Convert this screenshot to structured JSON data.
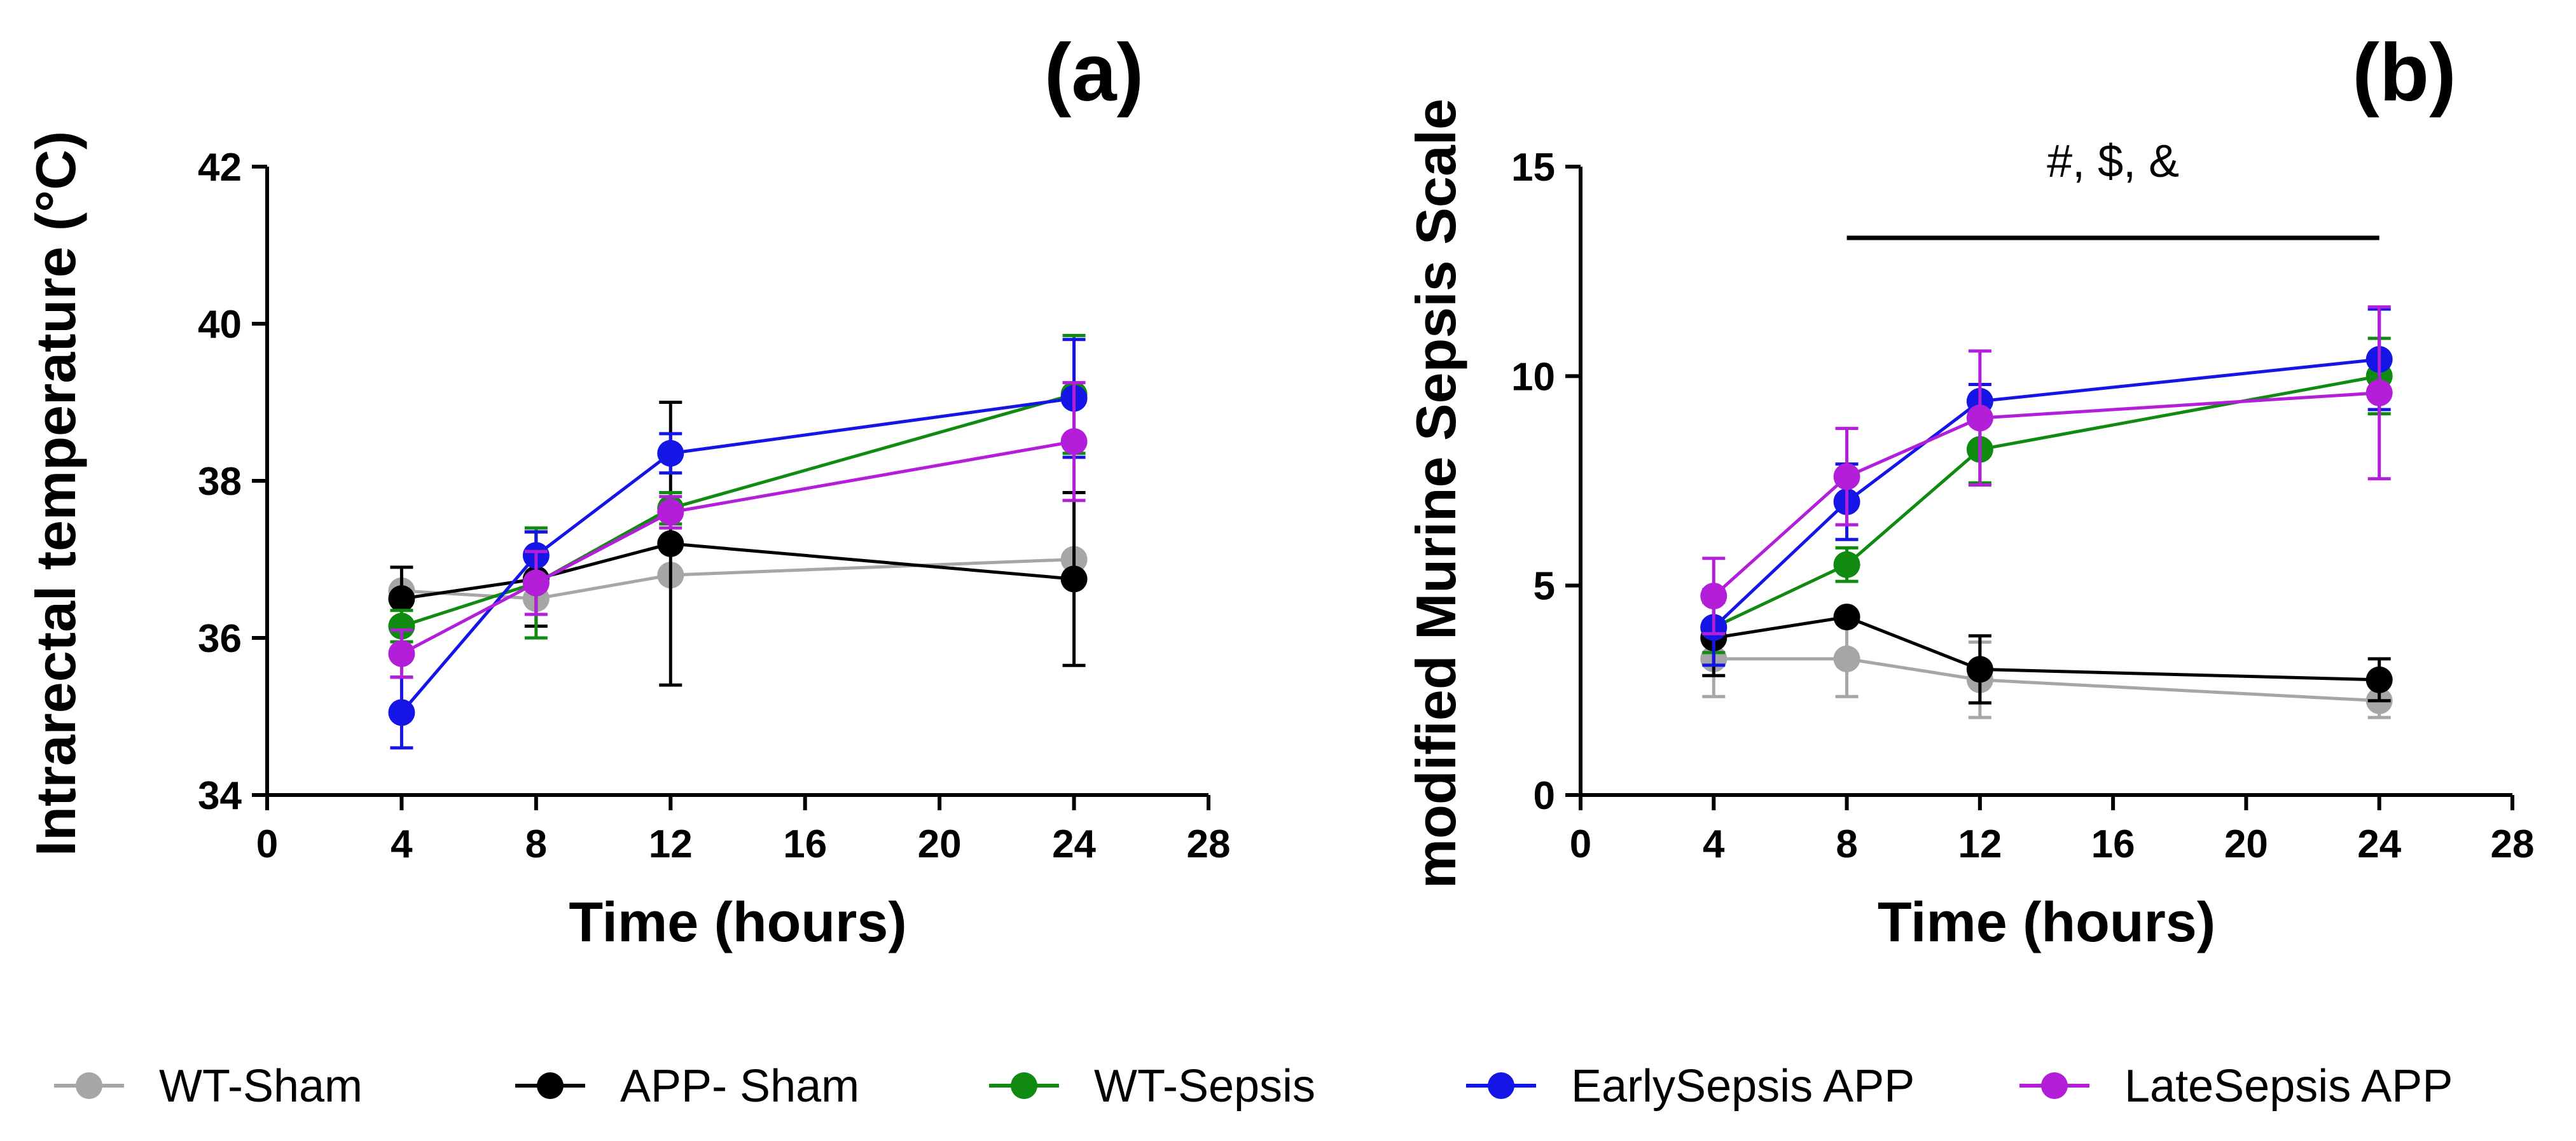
{
  "chart_data": [
    {
      "id": "a",
      "type": "line",
      "panel_label": "(a)",
      "title": "",
      "xlabel": "Time (hours)",
      "ylabel": "Intrarectal temperature (°C)",
      "xlim": [
        0,
        28
      ],
      "ylim": [
        34,
        42
      ],
      "xticks": [
        0,
        4,
        8,
        12,
        16,
        20,
        24,
        28
      ],
      "yticks": [
        34,
        36,
        38,
        40,
        42
      ],
      "x": [
        4,
        8,
        12,
        24
      ],
      "series": [
        {
          "name": "WT-Sham",
          "color": "#a6a6a6",
          "values": [
            36.6,
            36.5,
            36.8,
            37.0
          ],
          "errors": [
            0.0,
            0.0,
            0.0,
            0.0
          ]
        },
        {
          "name": "APP- Sham",
          "color": "#000000",
          "values": [
            36.5,
            36.75,
            37.2,
            36.75
          ],
          "errors": [
            0.4,
            0.6,
            1.8,
            1.1
          ]
        },
        {
          "name": "WT-Sepsis",
          "color": "#108a10",
          "values": [
            36.15,
            36.7,
            37.65,
            39.1
          ],
          "errors": [
            0.2,
            0.7,
            0.2,
            0.75
          ]
        },
        {
          "name": "EarlySepsis APP",
          "color": "#1515e6",
          "values": [
            35.05,
            37.05,
            38.35,
            39.05
          ],
          "errors": [
            0.45,
            0.3,
            0.25,
            0.75
          ]
        },
        {
          "name": "LateSepsis APP",
          "color": "#b31ed9",
          "values": [
            35.8,
            36.7,
            37.6,
            38.5
          ],
          "errors": [
            0.3,
            0.4,
            0.2,
            0.75
          ]
        }
      ]
    },
    {
      "id": "b",
      "type": "line",
      "panel_label": "(b)",
      "title": "",
      "xlabel": "Time (hours)",
      "ylabel": "modified Murine Sepsis Scale",
      "xlim": [
        0,
        28
      ],
      "ylim": [
        0,
        15
      ],
      "xticks": [
        0,
        4,
        8,
        12,
        16,
        20,
        24,
        28
      ],
      "yticks": [
        0,
        5,
        10,
        15
      ],
      "x": [
        4,
        8,
        12,
        24
      ],
      "annotation": {
        "text": "#,  $,  &",
        "bar_from": 8,
        "bar_to": 24,
        "bar_y": 13.3
      },
      "series": [
        {
          "name": "WT-Sham",
          "color": "#a6a6a6",
          "values": [
            3.25,
            3.25,
            2.75,
            2.25
          ],
          "errors": [
            0.9,
            0.9,
            0.9,
            0.4
          ]
        },
        {
          "name": "APP- Sham",
          "color": "#000000",
          "values": [
            3.75,
            4.25,
            3.0,
            2.75
          ],
          "errors": [
            0.9,
            0.0,
            0.8,
            0.5
          ]
        },
        {
          "name": "WT-Sepsis",
          "color": "#108a10",
          "values": [
            4.0,
            5.5,
            8.25,
            10.0
          ],
          "errors": [
            0.6,
            0.4,
            0.8,
            0.9
          ]
        },
        {
          "name": "EarlySepsis APP",
          "color": "#1515e6",
          "values": [
            4.0,
            7.0,
            9.4,
            10.4
          ],
          "errors": [
            0.9,
            0.9,
            0.4,
            1.2
          ]
        },
        {
          "name": "LateSepsis APP",
          "color": "#b31ed9",
          "values": [
            4.75,
            7.6,
            9.0,
            9.6
          ],
          "errors": [
            0.9,
            1.15,
            1.6,
            2.05
          ]
        }
      ]
    }
  ],
  "legend": [
    {
      "label": "WT-Sham",
      "color": "#a6a6a6"
    },
    {
      "label": "APP- Sham",
      "color": "#000000"
    },
    {
      "label": "WT-Sepsis",
      "color": "#108a10"
    },
    {
      "label": "EarlySepsis APP",
      "color": "#1515e6"
    },
    {
      "label": "LateSepsis APP",
      "color": "#b31ed9"
    }
  ]
}
